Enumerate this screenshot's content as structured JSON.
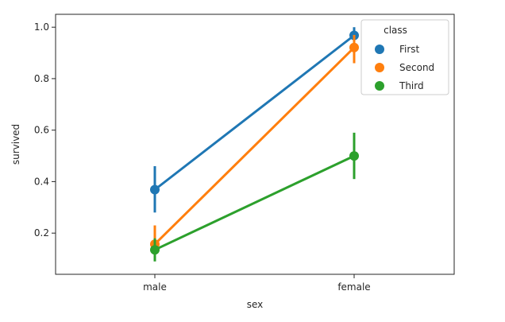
{
  "chart_data": {
    "type": "line",
    "xlabel": "sex",
    "ylabel": "survived",
    "categories": [
      "male",
      "female"
    ],
    "ylim": [
      0.04,
      1.05
    ],
    "yticks": [
      0.2,
      0.4,
      0.6,
      0.8,
      1.0
    ],
    "ytick_labels": [
      "0.2",
      "0.4",
      "0.6",
      "0.8",
      "1.0"
    ],
    "grid": false,
    "legend": {
      "title": "class",
      "placement": "top-right"
    },
    "series": [
      {
        "name": "First",
        "color": "#1f77b4",
        "values": [
          0.369,
          0.968
        ],
        "ci_low": [
          0.28,
          0.93
        ],
        "ci_high": [
          0.46,
          1.0
        ]
      },
      {
        "name": "Second",
        "color": "#ff7f0e",
        "values": [
          0.157,
          0.921
        ],
        "ci_low": [
          0.1,
          0.86
        ],
        "ci_high": [
          0.23,
          0.97
        ]
      },
      {
        "name": "Third",
        "color": "#2ca02c",
        "values": [
          0.135,
          0.5
        ],
        "ci_low": [
          0.09,
          0.41
        ],
        "ci_high": [
          0.18,
          0.59
        ]
      }
    ]
  }
}
